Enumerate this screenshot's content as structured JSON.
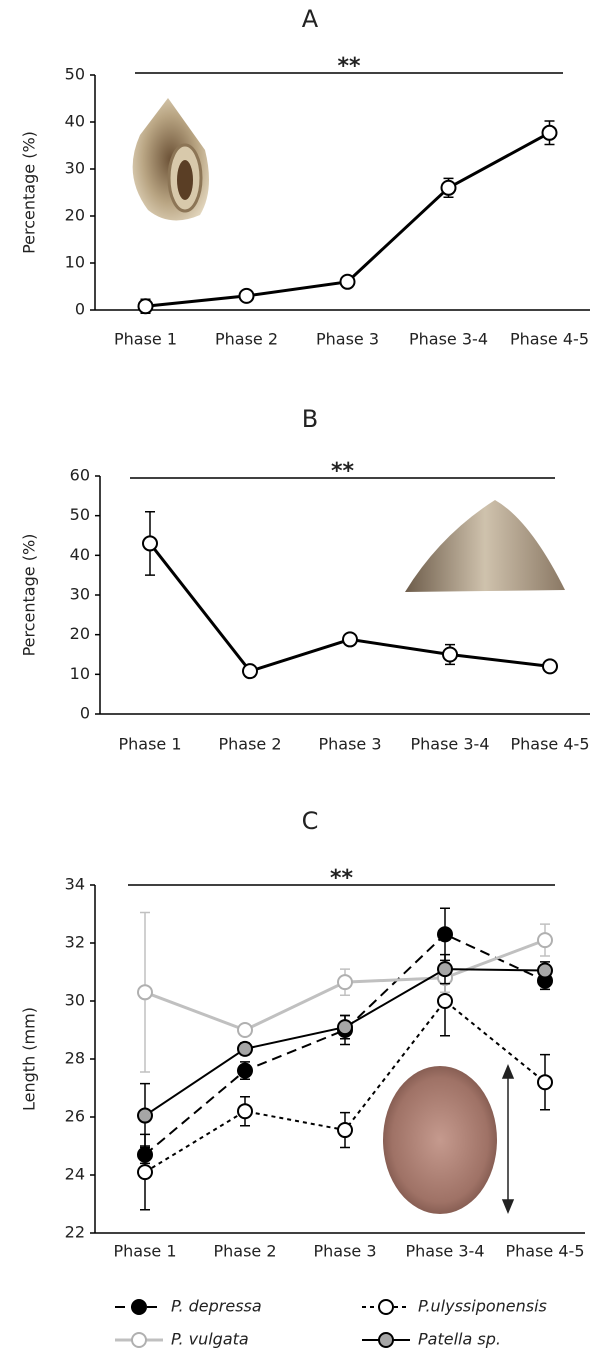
{
  "chart_data": [
    {
      "type": "line",
      "title": "A",
      "annotation": "**",
      "y_label": "Percentage (%)",
      "categories": [
        "Phase 1",
        "Phase 2",
        "Phase 3",
        "Phase 3-4",
        "Phase 4-5"
      ],
      "values": [
        0.8,
        3,
        6,
        26,
        37.7
      ],
      "errors": [
        1.5,
        0.5,
        0.5,
        2,
        2.5
      ],
      "color": "#000000",
      "marker_color": "#ffffff",
      "ylim": [
        0,
        50
      ],
      "yticks": [
        0,
        10,
        20,
        30,
        40,
        50
      ]
    },
    {
      "type": "line",
      "title": "B",
      "annotation": "**",
      "y_label": "Percentage (%)",
      "categories": [
        "Phase 1",
        "Phase 2",
        "Phase 3",
        "Phase 3-4",
        "Phase 4-5"
      ],
      "values": [
        43,
        10.8,
        18.8,
        15,
        12
      ],
      "errors": [
        8,
        0.5,
        1,
        2.5,
        1
      ],
      "color": "#000000",
      "marker_color": "#ffffff",
      "ylim": [
        0,
        60
      ],
      "yticks": [
        0,
        10,
        20,
        30,
        40,
        50,
        60
      ]
    },
    {
      "type": "line",
      "title": "C",
      "annotation": "**",
      "y_label": "Length (mm)",
      "categories": [
        "Phase 1",
        "Phase 2",
        "Phase 3",
        "Phase 3-4",
        "Phase 4-5"
      ],
      "series": [
        {
          "name": "P. depressa",
          "color": "#000000",
          "marker_color": "#000000",
          "line_style": "dashed",
          "values": [
            24.7,
            27.6,
            29.0,
            32.3,
            30.7
          ],
          "errors": [
            0.3,
            0.3,
            0.5,
            0.9,
            0.3
          ]
        },
        {
          "name": "P.ulyssiponensis",
          "color": "#000000",
          "marker_color": "#ffffff",
          "line_style": "dotted",
          "values": [
            24.1,
            26.2,
            25.55,
            30.0,
            27.2
          ],
          "errors": [
            1.3,
            0.5,
            0.6,
            1.2,
            0.95
          ]
        },
        {
          "name": "P. vulgata",
          "color": "#c0c0c0",
          "marker_color": "#ffffff",
          "line_style": "solid",
          "values": [
            30.3,
            29.0,
            30.65,
            30.8,
            32.1
          ],
          "errors": [
            2.75,
            0.1,
            0.45,
            0.5,
            0.55
          ]
        },
        {
          "name": "Patella sp.",
          "color": "#000000",
          "marker_color": "#a6a6a6",
          "line_style": "solid",
          "values": [
            26.05,
            28.35,
            29.1,
            31.1,
            31.05
          ],
          "errors": [
            1.1,
            0.2,
            0.4,
            0.5,
            0.3
          ]
        }
      ],
      "ylim": [
        22,
        34
      ],
      "yticks": [
        22,
        24,
        26,
        28,
        30,
        32,
        34
      ]
    }
  ]
}
